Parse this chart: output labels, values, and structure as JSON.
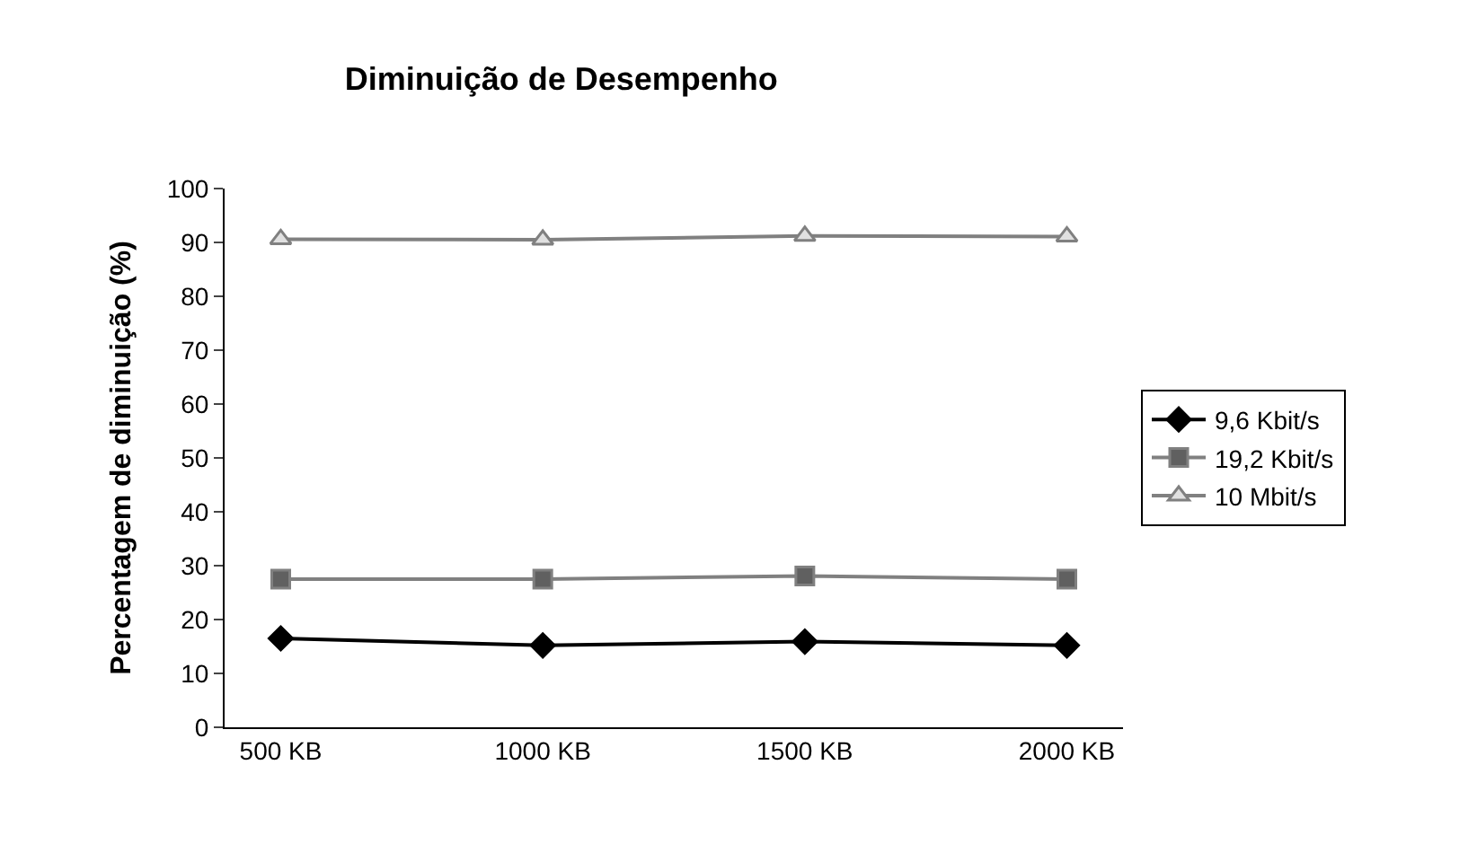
{
  "chart_data": {
    "type": "line",
    "title": "Diminuição de Desempenho",
    "ylabel": "Percentagem de diminuição (%)",
    "categories": [
      "500 KB",
      "1000 KB",
      "1500 KB",
      "2000 KB"
    ],
    "series": [
      {
        "name": "9,6 Kbit/s",
        "color": "#000000",
        "marker": "diamond",
        "values": [
          16.5,
          15.2,
          15.9,
          15.2
        ]
      },
      {
        "name": "19,2 Kbit/s",
        "color": "#808080",
        "marker": "square",
        "values": [
          27.5,
          27.5,
          28.1,
          27.5
        ]
      },
      {
        "name": "10 Mbit/s",
        "color": "#808080",
        "marker": "triangle",
        "values": [
          90.6,
          90.5,
          91.2,
          91.1
        ]
      }
    ],
    "ylim": [
      0,
      100
    ],
    "yticks": [
      0,
      10,
      20,
      30,
      40,
      50,
      60,
      70,
      80,
      90,
      100
    ],
    "legend": "right"
  }
}
